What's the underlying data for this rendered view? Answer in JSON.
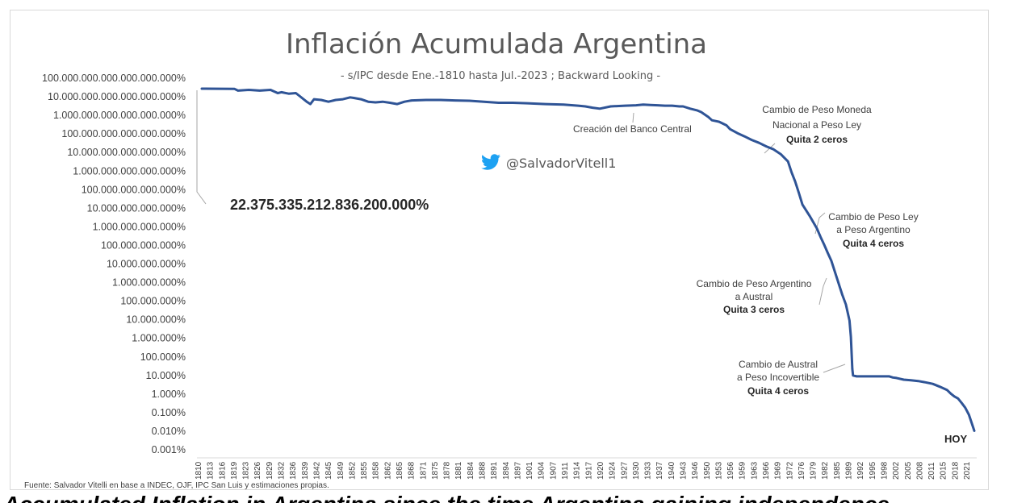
{
  "chart_data": {
    "type": "line",
    "title": "Inflación Acumulada Argentina",
    "subtitle": "- s/IPC desde Ene.-1810 hasta Jul.-2023 ; Backward Looking -",
    "y_scale": "log",
    "ylim": [
      0.001,
      100000000000000000000
    ],
    "y_tick_labels": [
      "100.000.000.000.000.000.000%",
      "10.000.000.000.000.000.000%",
      "1.000.000.000.000.000.000%",
      "100.000.000.000.000.000%",
      "10.000.000.000.000.000%",
      "1.000.000.000.000.000%",
      "100.000.000.000.000%",
      "10.000.000.000.000%",
      "1.000.000.000.000%",
      "100.000.000.000%",
      "10.000.000.000%",
      "1.000.000.000%",
      "100.000.000%",
      "10.000.000%",
      "1.000.000%",
      "100.000%",
      "10.000%",
      "1.000%",
      "0.100%",
      "0.010%",
      "0.001%"
    ],
    "x_tick_labels": [
      "1810",
      "1813",
      "1816",
      "1819",
      "1823",
      "1826",
      "1829",
      "1832",
      "1836",
      "1839",
      "1842",
      "1845",
      "1849",
      "1852",
      "1855",
      "1858",
      "1862",
      "1865",
      "1868",
      "1871",
      "1875",
      "1878",
      "1881",
      "1884",
      "1888",
      "1891",
      "1894",
      "1897",
      "1901",
      "1904",
      "1907",
      "1911",
      "1914",
      "1917",
      "1920",
      "1924",
      "1927",
      "1930",
      "1933",
      "1937",
      "1940",
      "1943",
      "1946",
      "1950",
      "1953",
      "1956",
      "1959",
      "1963",
      "1966",
      "1969",
      "1972",
      "1976",
      "1979",
      "1982",
      "1985",
      "1989",
      "1992",
      "1995",
      "1998",
      "2002",
      "2005",
      "2008",
      "2011",
      "2015",
      "2018",
      "2021"
    ],
    "xlim": [
      1810,
      2023.5
    ],
    "series": [
      {
        "color": "#2f5496",
        "x": [
          1810,
          1819,
          1820,
          1823,
          1826,
          1829,
          1831,
          1832,
          1834,
          1836,
          1837,
          1839,
          1840,
          1841,
          1843,
          1845,
          1847,
          1849,
          1851,
          1852,
          1854,
          1856,
          1858,
          1860,
          1862,
          1864,
          1866,
          1868,
          1872,
          1876,
          1880,
          1884,
          1888,
          1892,
          1896,
          1900,
          1905,
          1910,
          1914,
          1916,
          1918,
          1920,
          1923,
          1927,
          1930,
          1932,
          1934,
          1936,
          1938,
          1940,
          1942,
          1943,
          1945,
          1947,
          1948,
          1950,
          1951,
          1953,
          1955,
          1956,
          1958,
          1960,
          1962,
          1964,
          1966,
          1968,
          1970,
          1972,
          1973,
          1974,
          1975,
          1976,
          1978,
          1980,
          1981,
          1982,
          1983,
          1984,
          1985,
          1986,
          1987,
          1988,
          1989,
          1989.4,
          1989.8,
          1990,
          1990.5,
          1991,
          1992,
          1995,
          1998,
          2000,
          2001,
          2002,
          2004,
          2006,
          2008,
          2010,
          2012,
          2014,
          2016,
          2017,
          2018,
          2019,
          2020,
          2021,
          2022,
          2023.5
        ],
        "y": [
          2.24e+19,
          2.2e+19,
          1.7e+19,
          1.9e+19,
          1.7e+19,
          1.9e+19,
          1.2e+19,
          1.35e+19,
          1.1e+19,
          1.2e+19,
          8e+18,
          3.5e+18,
          2.5e+18,
          5e+18,
          4.5e+18,
          3.5e+18,
          4.5e+18,
          5e+18,
          6.5e+18,
          6e+18,
          5e+18,
          3.5e+18,
          3.2e+18,
          3.5e+18,
          3e+18,
          2.5e+18,
          3.5e+18,
          4.2e+18,
          4.5e+18,
          4.5e+18,
          4.2e+18,
          4e+18,
          3.5e+18,
          3e+18,
          3e+18,
          2.8e+18,
          2.5e+18,
          2.3e+18,
          2e+18,
          1.8e+18,
          1.5e+18,
          1.3e+18,
          1.8e+18,
          2e+18,
          2.1e+18,
          2.3e+18,
          2.2e+18,
          2.1e+18,
          2e+18,
          2e+18,
          1.8e+18,
          1.8e+18,
          1.3e+18,
          1e+18,
          8e+17,
          4e+17,
          2.5e+17,
          2e+17,
          1.2e+17,
          7e+16,
          4e+16,
          2.5e+16,
          1.5e+16,
          1e+16,
          6000000000000000.0,
          4000000000000000.0,
          2000000000000000.0,
          700000000000000.0,
          150000000000000.0,
          40000000000000.0,
          8000000000000.0,
          1500000000000.0,
          300000000000.0,
          50000000000.0,
          15000000000.0,
          5000000000.0,
          1500000000.0,
          500000000.0,
          100000000.0,
          20000000.0,
          4000000.0,
          1000000.0,
          100000.0,
          10000.0,
          100,
          40,
          37,
          35,
          35,
          35,
          35,
          35,
          30,
          28,
          22,
          20,
          18,
          15,
          12,
          8,
          5,
          3,
          2,
          1.5,
          0.8,
          0.4,
          0.15,
          0.015
        ]
      }
    ],
    "annotations": {
      "total": "22.375.335.212.836.200.000%",
      "banco_central": "Creación del Banco Central",
      "peso_ley": [
        "Cambio de Peso Moneda",
        "Nacional a Peso Ley",
        "Quita 2 ceros"
      ],
      "peso_argentino": [
        "Cambio de Peso Ley",
        "a Peso Argentino",
        "Quita 4 ceros"
      ],
      "austral": [
        "Cambio de Peso Argentino",
        "a Austral",
        "Quita 3 ceros"
      ],
      "incovertible": [
        "Cambio de Austral",
        "a Peso Incovertible",
        "Quita 4 ceros"
      ],
      "hoy": "HOY"
    },
    "twitter_handle": "@SalvadorVitell1",
    "source": "Fuente: Salvador Vitelli en base a INDEC, OJF, IPC San Luis y estimaciones propias.",
    "grid": false,
    "legend": "none"
  },
  "caption": "Accumulated Inflation in Argentina since the time Argentina gaining independence"
}
